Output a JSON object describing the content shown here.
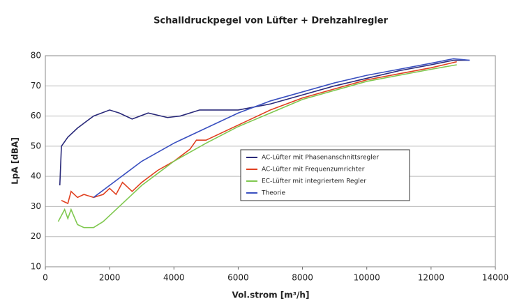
{
  "chart_data": {
    "type": "line",
    "title": "Schalldruckpegel von Lüfter + Drehzahlregler",
    "x_label": "Vol.strom [m³/h]",
    "y_label": "LpA [dBA]",
    "xlim": [
      0,
      14000
    ],
    "xticks": [
      0,
      2000,
      4000,
      6000,
      8000,
      10000,
      12000,
      14000
    ],
    "ylim": [
      10,
      80
    ],
    "yticks": [
      10,
      20,
      30,
      40,
      50,
      60,
      70,
      80
    ],
    "grid": true,
    "legend": "center-right",
    "series": [
      {
        "name": "AC-Lüfter mit Phasenanschnittsregler",
        "color": "#2a2a7a",
        "x": [
          450,
          500,
          700,
          1000,
          1500,
          2000,
          2300,
          2700,
          3200,
          3800,
          4200,
          4800,
          5500,
          6000,
          7000,
          8000,
          9000,
          10000,
          11000,
          12000,
          12700,
          13200
        ],
        "values": [
          37,
          50,
          53,
          56,
          60,
          62,
          61,
          59,
          61,
          59.5,
          60,
          62,
          62,
          62,
          64,
          67,
          70,
          72.5,
          75,
          77,
          78.5,
          78.5
        ]
      },
      {
        "name": "AC-Lüfter mit Frequenzumrichter",
        "color": "#e04020",
        "x": [
          500,
          700,
          800,
          1000,
          1200,
          1500,
          1800,
          2000,
          2200,
          2400,
          2700,
          3000,
          3500,
          4000,
          4500,
          4700,
          5000,
          6000,
          7000,
          8000,
          9000,
          10000,
          11000,
          12000,
          12800
        ],
        "values": [
          32,
          31,
          35,
          33,
          34,
          33,
          34,
          36,
          34,
          38,
          35,
          38,
          42,
          45,
          49,
          52,
          52,
          57,
          62,
          66,
          69,
          72,
          74,
          76,
          78
        ]
      },
      {
        "name": "EC-Lüfter mit integriertem Regler",
        "color": "#80c850",
        "x": [
          400,
          600,
          700,
          800,
          1000,
          1200,
          1500,
          1800,
          2000,
          2500,
          3000,
          3500,
          4000,
          5000,
          6000,
          7000,
          8000,
          9000,
          10000,
          11000,
          12000,
          12800
        ],
        "values": [
          25,
          29,
          26,
          29,
          24,
          23,
          23,
          25,
          27,
          32,
          37,
          41,
          45,
          51,
          56.5,
          61,
          65.5,
          68.5,
          71.5,
          73.5,
          75.5,
          77
        ]
      },
      {
        "name": "Theorie",
        "color": "#3a50c0",
        "x": [
          1500,
          2000,
          2500,
          3000,
          4000,
          5000,
          6000,
          7000,
          8000,
          9000,
          10000,
          11000,
          12000,
          12700,
          13200
        ],
        "values": [
          33,
          37,
          41,
          45,
          51,
          56,
          61,
          65,
          68,
          71,
          73.5,
          75.5,
          77.5,
          79,
          78.5
        ]
      }
    ]
  }
}
